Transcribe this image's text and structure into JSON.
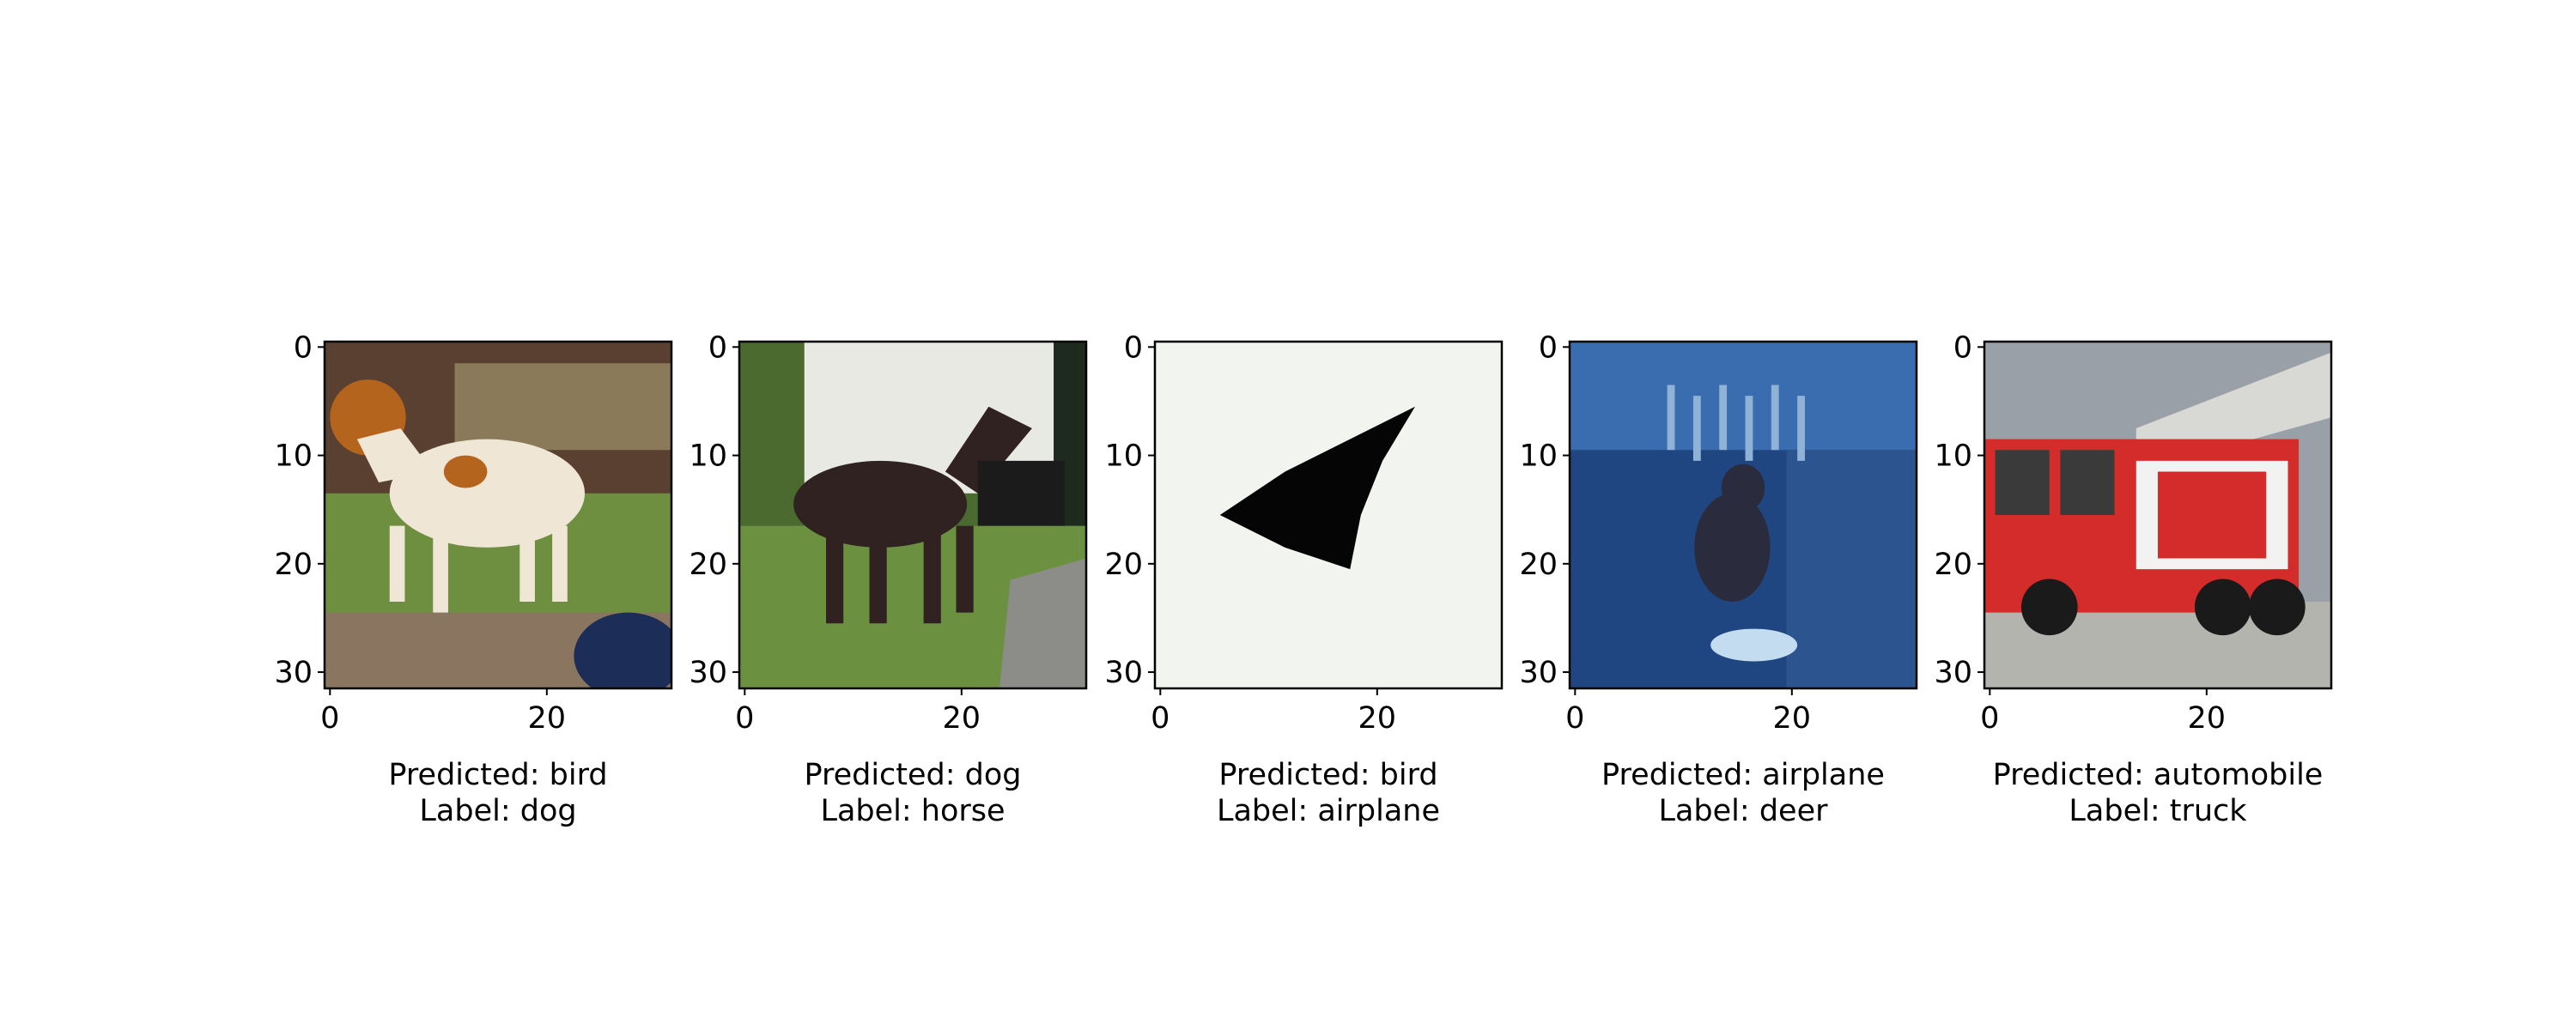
{
  "chart_data": {
    "type": "image_grid",
    "panels": [
      {
        "caption": [
          "Predicted: bird",
          "Label: dog"
        ],
        "predicted": "bird",
        "label": "dog",
        "subject": "dog",
        "xticks": [
          "0",
          "20"
        ],
        "yticks": [
          "0",
          "10",
          "20",
          "30"
        ],
        "colors": {
          "bg1": "#5a4030",
          "bg2": "#8a7a5a",
          "ground": "#6f8f40",
          "body": "#efe6d6",
          "accent": "#b5641e",
          "extra": "#1c2e57"
        }
      },
      {
        "caption": [
          "Predicted: dog",
          "Label: horse"
        ],
        "predicted": "dog",
        "label": "horse",
        "subject": "horse",
        "xticks": [
          "0",
          "20"
        ],
        "yticks": [
          "0",
          "10",
          "20",
          "30"
        ],
        "colors": {
          "bg1": "#4a6a30",
          "bg2": "#e9e9e4",
          "ground": "#6a9040",
          "body": "#2f2220",
          "accent": "#8c8c88",
          "extra": "#1f2a1f"
        }
      },
      {
        "caption": [
          "Predicted: bird",
          "Label: airplane"
        ],
        "predicted": "bird",
        "label": "airplane",
        "subject": "airplane",
        "xticks": [
          "0",
          "20"
        ],
        "yticks": [
          "0",
          "10",
          "20",
          "30"
        ],
        "colors": {
          "bg1": "#f2f5ef",
          "bg2": "#f2f5ef",
          "ground": "#f2f5ef",
          "body": "#050505",
          "accent": "#050505",
          "extra": "#f2f5ef"
        }
      },
      {
        "caption": [
          "Predicted: airplane",
          "Label: deer"
        ],
        "predicted": "airplane",
        "label": "deer",
        "subject": "deer",
        "xticks": [
          "0",
          "20"
        ],
        "yticks": [
          "0",
          "10",
          "20",
          "30"
        ],
        "colors": {
          "bg1": "#1f4680",
          "bg2": "#3a6db0",
          "ground": "#2c5590",
          "body": "#2a2c3e",
          "accent": "#8fb2d6",
          "extra": "#c4dcf0"
        }
      },
      {
        "caption": [
          "Predicted: automobile",
          "Label: truck"
        ],
        "predicted": "automobile",
        "label": "truck",
        "subject": "truck",
        "xticks": [
          "0",
          "20"
        ],
        "yticks": [
          "0",
          "10",
          "20",
          "30"
        ],
        "colors": {
          "bg1": "#9aa0a8",
          "bg2": "#d8d8d4",
          "ground": "#b4b4ae",
          "body": "#d42b2b",
          "accent": "#f2f2f2",
          "extra": "#1a1a1a"
        }
      }
    ]
  }
}
